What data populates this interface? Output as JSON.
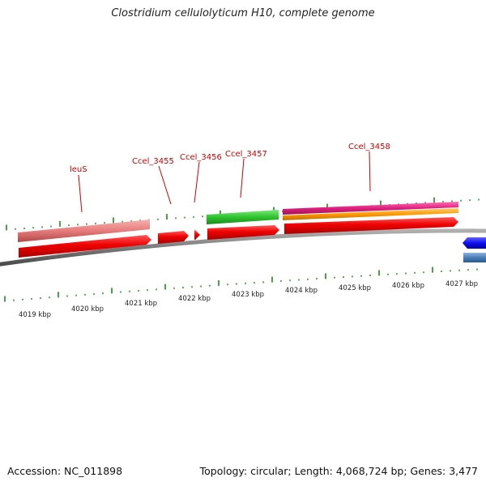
{
  "title": "Clostridium cellulolyticum H10, complete genome",
  "footer": {
    "accession": "Accession: NC_011898",
    "summary": "Topology: circular; Length: 4,068,724 bp; Genes: 3,477"
  },
  "gene_labels": [
    "leuS",
    "Ccel_3455",
    "Ccel_3456",
    "Ccel_3457",
    "Ccel_3458"
  ],
  "kbp_labels": [
    "4019 kbp",
    "4020 kbp",
    "4021 kbp",
    "4022 kbp",
    "4023 kbp",
    "4024 kbp",
    "4025 kbp",
    "4026 kbp",
    "4027 kbp"
  ],
  "colors": {
    "gene_red": "#e00000",
    "feature_pink": "#e77b7b",
    "feature_green": "#2fc42f",
    "feature_magenta": "#e0207f",
    "feature_orange": "#ff9a00",
    "feature_blue": "#1010f0",
    "feature_steel": "#4a7fb8",
    "backbone": "#7a7a7a",
    "tick_green": "#1a8a1a",
    "label_red": "#cc0000"
  }
}
